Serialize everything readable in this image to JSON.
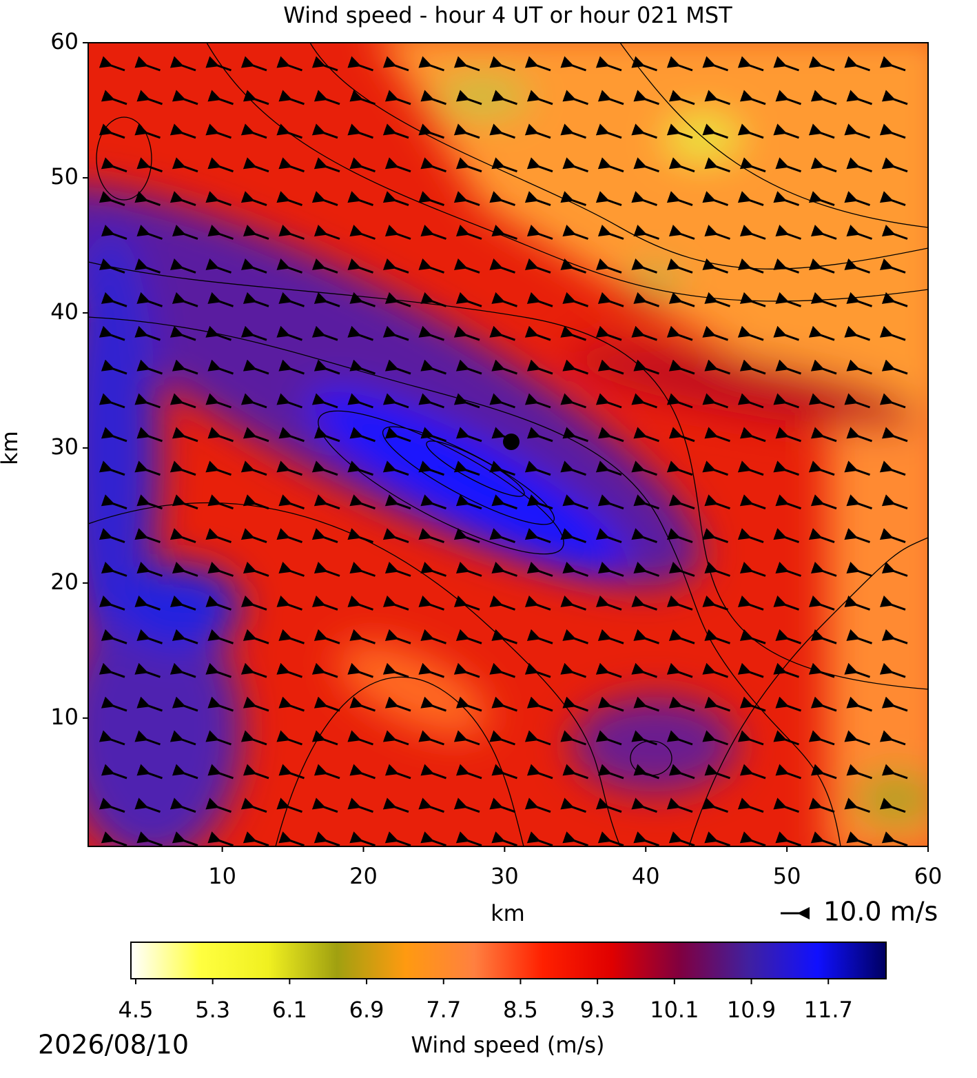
{
  "chart_data": {
    "type": "contourf",
    "title": "Wind speed - hour 4 UT or hour 021 MST",
    "xlabel": "km",
    "ylabel": "km",
    "xlim": [
      0.5,
      60
    ],
    "ylim": [
      0.5,
      60
    ],
    "xticks": [
      10,
      20,
      30,
      40,
      50,
      60
    ],
    "yticks": [
      10,
      20,
      30,
      40,
      50,
      60
    ],
    "quiver_key": {
      "value": 10.0,
      "label": "10.0 m/s"
    },
    "colorbar": {
      "label": "Wind speed (m/s)",
      "clim": [
        4.45,
        12.3
      ],
      "ticks": [
        4.5,
        5.3,
        6.1,
        6.9,
        7.7,
        8.5,
        9.3,
        10.1,
        10.9,
        11.7
      ],
      "colormap": [
        "#ffffff",
        "#ffff40",
        "#f0f020",
        "#a0a010",
        "#ff9a10",
        "#ff8040",
        "#ff2000",
        "#e00000",
        "#800040",
        "#4020a0",
        "#1010ff",
        "#000060"
      ]
    },
    "date": "2026/08/10"
  }
}
